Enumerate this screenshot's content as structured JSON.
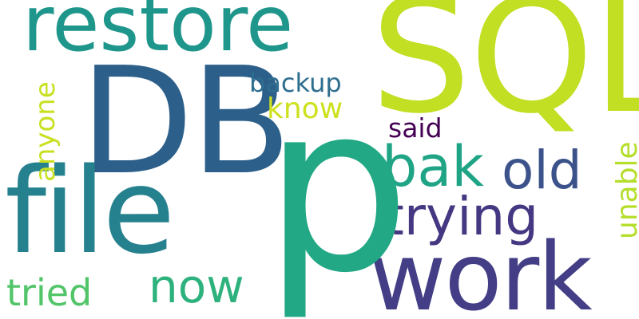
{
  "words": {
    "sql": {
      "text": "SQL",
      "color": "#c2df23"
    },
    "db": {
      "text": "DB",
      "color": "#2c5f8a"
    },
    "p": {
      "text": "p",
      "color": "#22a884"
    },
    "restore": {
      "text": "restore",
      "color": "#1f968b"
    },
    "file": {
      "text": "file",
      "color": "#26818e"
    },
    "work": {
      "text": "work",
      "color": "#433e85"
    },
    "bak": {
      "text": "bak",
      "color": "#20a486"
    },
    "old": {
      "text": "old",
      "color": "#3b528b"
    },
    "trying": {
      "text": "trying",
      "color": "#453781"
    },
    "backup": {
      "text": "backup",
      "color": "#2e6e8e"
    },
    "know": {
      "text": "know",
      "color": "#cde11d"
    },
    "said": {
      "text": "said",
      "color": "#440154"
    },
    "now": {
      "text": "now",
      "color": "#2db27d"
    },
    "tried": {
      "text": "tried",
      "color": "#52c569"
    },
    "anyone": {
      "text": "anyone",
      "color": "#c8e020"
    },
    "unable": {
      "text": "unable",
      "color": "#b5de2b"
    }
  }
}
